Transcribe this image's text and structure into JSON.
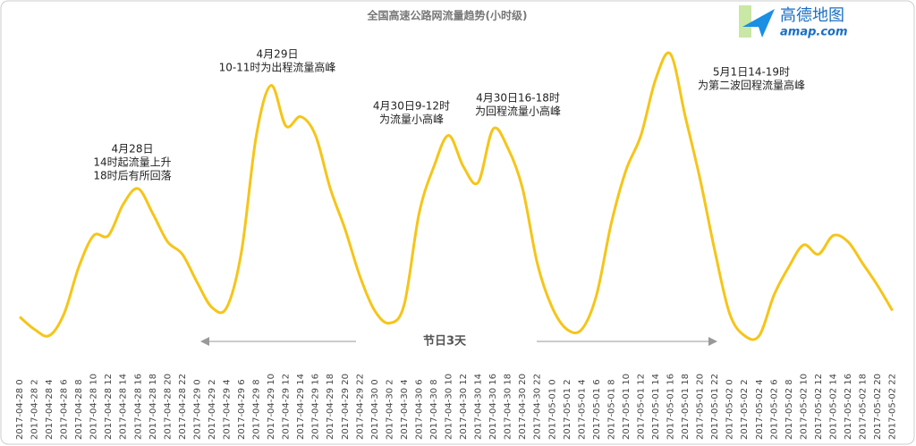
{
  "chart_data": {
    "type": "line",
    "title": "全国高速公路网流量趋势(小时级)",
    "logo": {
      "name": "高德地图",
      "site": "amap.com"
    },
    "categories": [
      "2017-04-28 0",
      "2017-04-28 2",
      "2017-04-28 4",
      "2017-04-28 6",
      "2017-04-28 8",
      "2017-04-28 10",
      "2017-04-28 12",
      "2017-04-28 14",
      "2017-04-28 16",
      "2017-04-28 18",
      "2017-04-28 20",
      "2017-04-28 22",
      "2017-04-29 0",
      "2017-04-29 2",
      "2017-04-29 4",
      "2017-04-29 6",
      "2017-04-29 8",
      "2017-04-29 10",
      "2017-04-29 12",
      "2017-04-29 14",
      "2017-04-29 16",
      "2017-04-29 18",
      "2017-04-29 20",
      "2017-04-29 22",
      "2017-04-30 0",
      "2017-04-30 2",
      "2017-04-30 4",
      "2017-04-30 6",
      "2017-04-30 8",
      "2017-04-30 10",
      "2017-04-30 12",
      "2017-04-30 14",
      "2017-04-30 16",
      "2017-04-30 18",
      "2017-04-30 20",
      "2017-04-30 22",
      "2017-05-01 0",
      "2017-05-01 2",
      "2017-05-01 4",
      "2017-05-01 6",
      "2017-05-01 8",
      "2017-05-01 10",
      "2017-05-01 12",
      "2017-05-01 14",
      "2017-05-01 16",
      "2017-05-01 18",
      "2017-05-01 20",
      "2017-05-01 22",
      "2017-05-02 0",
      "2017-05-02 2",
      "2017-05-02 4",
      "2017-05-02 6",
      "2017-05-02 8",
      "2017-05-02 10",
      "2017-05-02 12",
      "2017-05-02 14",
      "2017-05-02 16",
      "2017-05-02 18",
      "2017-05-02 20",
      "2017-05-02 22"
    ],
    "series": [
      {
        "color": "#f5c518",
        "values": [
          13,
          9,
          7,
          14,
          29,
          39,
          39,
          49,
          54,
          46,
          37,
          33,
          24,
          16,
          16,
          34,
          71,
          87,
          74,
          77,
          71,
          54,
          41,
          26,
          15,
          11,
          17,
          46,
          61,
          71,
          61,
          56,
          73,
          67,
          54,
          30,
          16,
          9,
          9,
          20,
          43,
          60,
          71,
          89,
          97,
          77,
          57,
          34,
          14,
          7,
          7,
          20,
          29,
          36,
          33,
          39,
          37,
          30,
          23,
          15
        ]
      }
    ],
    "ylim": [
      0,
      100
    ],
    "annotations": [
      {
        "lines": [
          "4月28日",
          "14时起流量上升",
          "18时后有所回落"
        ]
      },
      {
        "lines": [
          "4月29日",
          "10-11时为出程流量高峰"
        ]
      },
      {
        "lines": [
          "4月30日9-12时",
          "为流量小高峰"
        ]
      },
      {
        "lines": [
          "4月30日16-18时",
          "为回程流量小高峰"
        ]
      },
      {
        "lines": [
          "5月1日14-19时",
          "为第二波回程流量高峰"
        ]
      }
    ],
    "period_label": "节日3天"
  }
}
